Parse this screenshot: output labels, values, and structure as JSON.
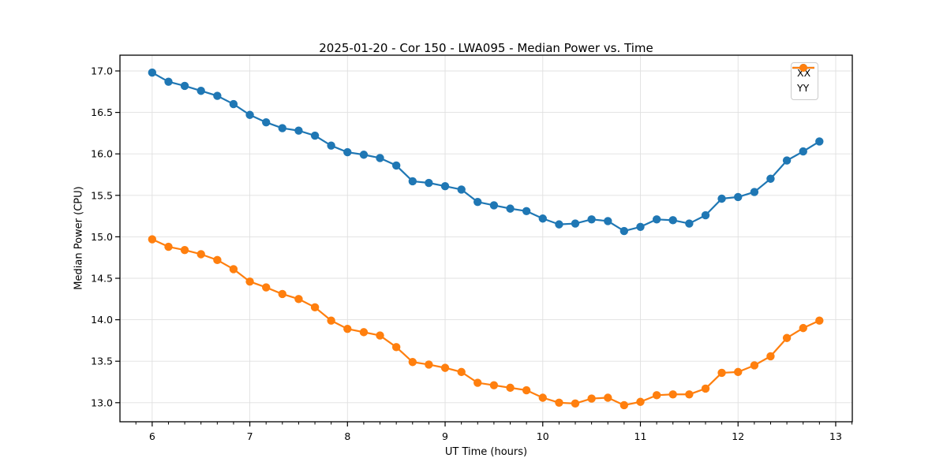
{
  "chart_data": {
    "type": "line",
    "title": "2025-01-20 - Cor 150 - LWA095 - Median Power vs. Time",
    "xlabel": "UT Time (hours)",
    "ylabel": "Median Power (CPU)",
    "xlim": [
      5.67,
      13.17
    ],
    "ylim": [
      12.77,
      17.19
    ],
    "x_major_ticks": [
      6,
      7,
      8,
      9,
      10,
      11,
      12,
      13
    ],
    "y_major_ticks": [
      13.0,
      13.5,
      14.0,
      14.5,
      15.0,
      15.5,
      16.0,
      16.5,
      17.0
    ],
    "x_minor_tick_step": 0.16667,
    "grid": true,
    "grid_color": "#e0e0e0",
    "legend_position": "upper right",
    "x": [
      6.0,
      6.167,
      6.333,
      6.5,
      6.667,
      6.833,
      7.0,
      7.167,
      7.333,
      7.5,
      7.667,
      7.833,
      8.0,
      8.167,
      8.333,
      8.5,
      8.667,
      8.833,
      9.0,
      9.167,
      9.333,
      9.5,
      9.667,
      9.833,
      10.0,
      10.167,
      10.333,
      10.5,
      10.667,
      10.833,
      11.0,
      11.167,
      11.333,
      11.5,
      11.667,
      11.833,
      12.0,
      12.167,
      12.333,
      12.5,
      12.667,
      12.833
    ],
    "series": [
      {
        "name": "XX",
        "color": "#1f77b4",
        "values": [
          16.98,
          16.87,
          16.82,
          16.76,
          16.7,
          16.6,
          16.47,
          16.38,
          16.31,
          16.28,
          16.22,
          16.1,
          16.02,
          15.99,
          15.95,
          15.86,
          15.67,
          15.65,
          15.61,
          15.57,
          15.42,
          15.38,
          15.34,
          15.31,
          15.22,
          15.15,
          15.16,
          15.21,
          15.19,
          15.07,
          15.12,
          15.21,
          15.2,
          15.16,
          15.26,
          15.46,
          15.48,
          15.54,
          15.7,
          15.92,
          16.03,
          16.15
        ]
      },
      {
        "name": "YY",
        "color": "#ff7f0e",
        "values": [
          14.97,
          14.88,
          14.84,
          14.79,
          14.72,
          14.61,
          14.46,
          14.39,
          14.31,
          14.25,
          14.15,
          13.99,
          13.89,
          13.85,
          13.81,
          13.67,
          13.49,
          13.46,
          13.42,
          13.37,
          13.24,
          13.21,
          13.18,
          13.15,
          13.06,
          13.0,
          12.99,
          13.05,
          13.06,
          12.97,
          13.01,
          13.09,
          13.1,
          13.1,
          13.17,
          13.36,
          13.37,
          13.45,
          13.56,
          13.78,
          13.9,
          13.99
        ]
      }
    ]
  }
}
